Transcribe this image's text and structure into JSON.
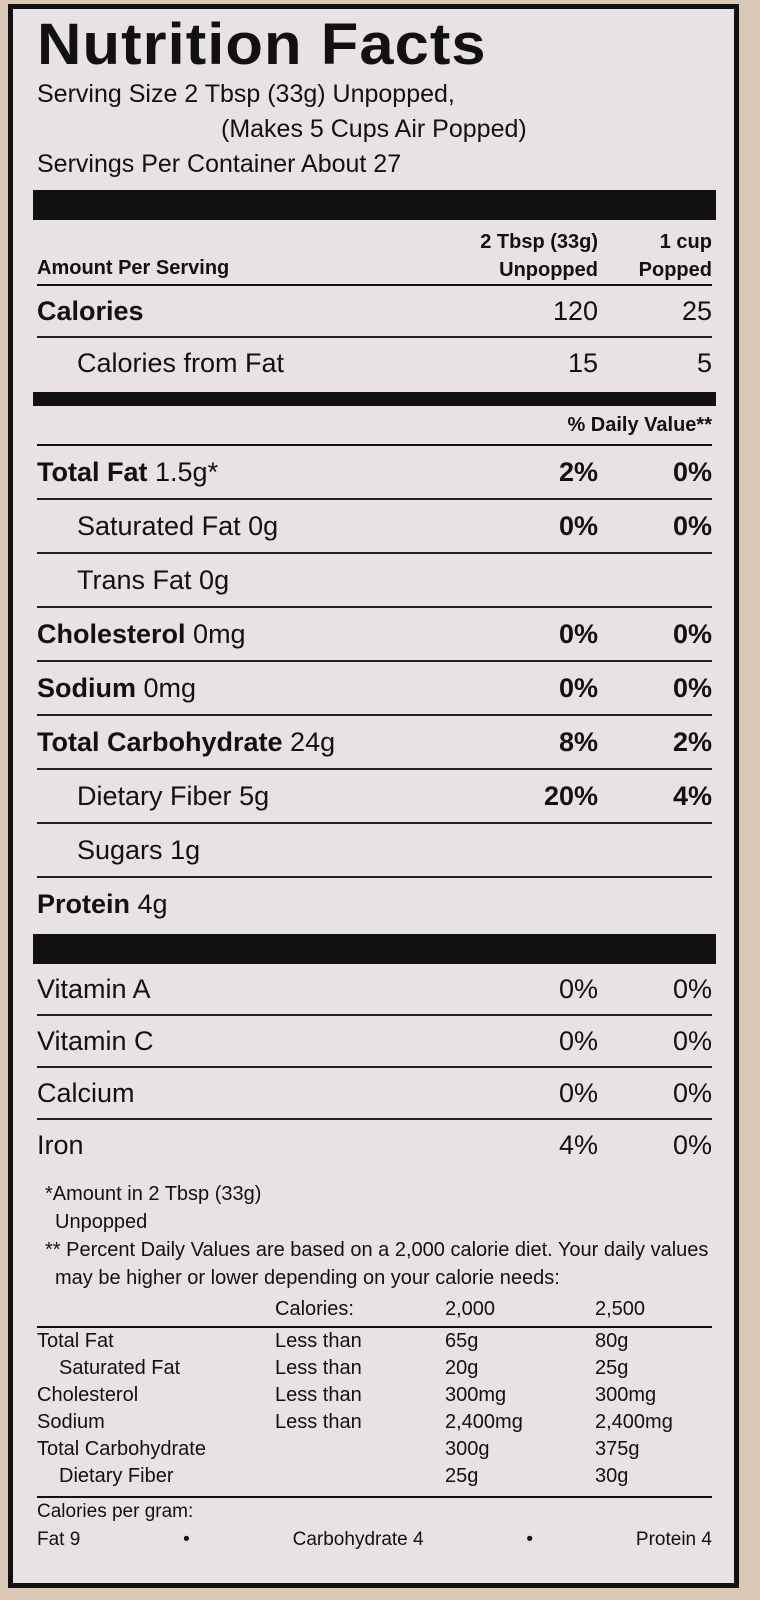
{
  "title": "Nutrition Facts",
  "serving": {
    "line1": "Serving Size 2 Tbsp (33g) Unpopped,",
    "line2": "(Makes 5 Cups Air Popped)",
    "line3": "Servings Per Container About 27"
  },
  "header": {
    "amount_per_serving": "Amount Per Serving",
    "col1_line1": "2 Tbsp (33g)",
    "col1_line2": "Unpopped",
    "col2_line1": "1 cup",
    "col2_line2": "Popped"
  },
  "calories": {
    "label": "Calories",
    "v1": "120",
    "v2": "25"
  },
  "calories_fat": {
    "label": "Calories from Fat",
    "v1": "15",
    "v2": "5"
  },
  "dv_header": "% Daily Value**",
  "nutrients": [
    {
      "name": "Total Fat",
      "amount": "1.5g*",
      "v1": "2%",
      "v2": "0%"
    },
    {
      "name": "Saturated Fat",
      "amount": "0g",
      "v1": "0%",
      "v2": "0%"
    },
    {
      "name": "Trans Fat",
      "amount": "0g",
      "v1": "",
      "v2": ""
    },
    {
      "name": "Cholesterol",
      "amount": "0mg",
      "v1": "0%",
      "v2": "0%"
    },
    {
      "name": "Sodium",
      "amount": "0mg",
      "v1": "0%",
      "v2": "0%"
    },
    {
      "name": "Total Carbohydrate",
      "amount": "24g",
      "v1": "8%",
      "v2": "2%"
    },
    {
      "name": "Dietary Fiber",
      "amount": "5g",
      "v1": "20%",
      "v2": "4%"
    },
    {
      "name": "Sugars",
      "amount": "1g",
      "v1": "",
      "v2": ""
    },
    {
      "name": "Protein",
      "amount": "4g",
      "v1": "",
      "v2": ""
    }
  ],
  "vitamins": [
    {
      "name": "Vitamin A",
      "v1": "0%",
      "v2": "0%"
    },
    {
      "name": "Vitamin C",
      "v1": "0%",
      "v2": "0%"
    },
    {
      "name": "Calcium",
      "v1": "0%",
      "v2": "0%"
    },
    {
      "name": "Iron",
      "v1": "4%",
      "v2": "0%"
    }
  ],
  "footnotes": {
    "note1": "*Amount in 2 Tbsp (33g) Unpopped",
    "note2": "** Percent Daily Values are based on a 2,000 calorie diet. Your daily values may be higher or lower depending on your calorie needs:"
  },
  "dv_table": {
    "calories_label": "Calories:",
    "c1": "2,000",
    "c2": "2,500",
    "rows": [
      {
        "name": "Total Fat",
        "qual": "Less than",
        "a": "65g",
        "b": "80g"
      },
      {
        "name": "Saturated Fat",
        "qual": "Less than",
        "a": "20g",
        "b": "25g"
      },
      {
        "name": "Cholesterol",
        "qual": "Less than",
        "a": "300mg",
        "b": "300mg"
      },
      {
        "name": "Sodium",
        "qual": "Less than",
        "a": "2,400mg",
        "b": "2,400mg"
      },
      {
        "name": "Total Carbohydrate",
        "qual": "",
        "a": "300g",
        "b": "375g"
      },
      {
        "name": "Dietary Fiber",
        "qual": "",
        "a": "25g",
        "b": "30g"
      }
    ]
  },
  "calories_per_gram": {
    "label": "Calories per gram:",
    "fat": "Fat 9",
    "bullet": "•",
    "carb": "Carbohydrate 4",
    "protein": "Protein 4"
  }
}
